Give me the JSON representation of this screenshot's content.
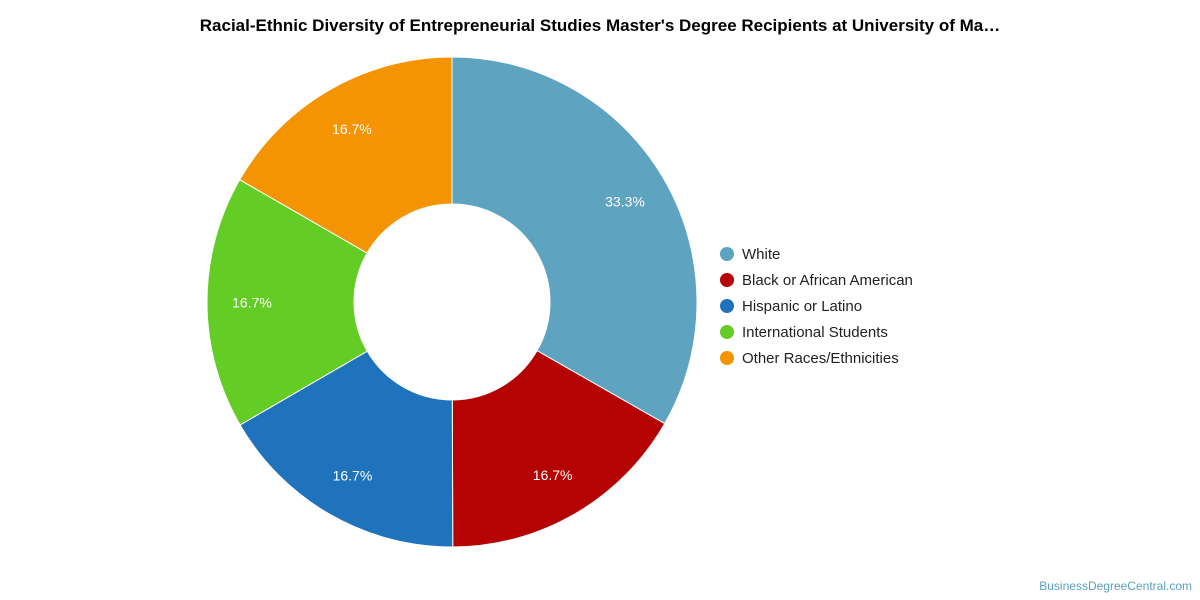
{
  "title": "Racial-Ethnic Diversity of Entrepreneurial Studies Master's Degree Recipients at University of Ma…",
  "watermark": "BusinessDegreeCentral.com",
  "chart_data": {
    "type": "pie",
    "variant": "donut",
    "title": "Racial-Ethnic Diversity of Entrepreneurial Studies Master's Degree Recipients at University of Ma…",
    "legend_position": "right",
    "slices": [
      {
        "label": "White",
        "value": 33.3,
        "display": "33.3%",
        "color": "#5ea3c0"
      },
      {
        "label": "Black or African American",
        "value": 16.7,
        "display": "16.7%",
        "color": "#b50303"
      },
      {
        "label": "Hispanic or Latino",
        "value": 16.7,
        "display": "16.7%",
        "color": "#1f73bc"
      },
      {
        "label": "International Students",
        "value": 16.7,
        "display": "16.7%",
        "color": "#63cc25"
      },
      {
        "label": "Other Races/Ethnicities",
        "value": 16.7,
        "display": "16.7%",
        "color": "#f59402"
      }
    ]
  }
}
